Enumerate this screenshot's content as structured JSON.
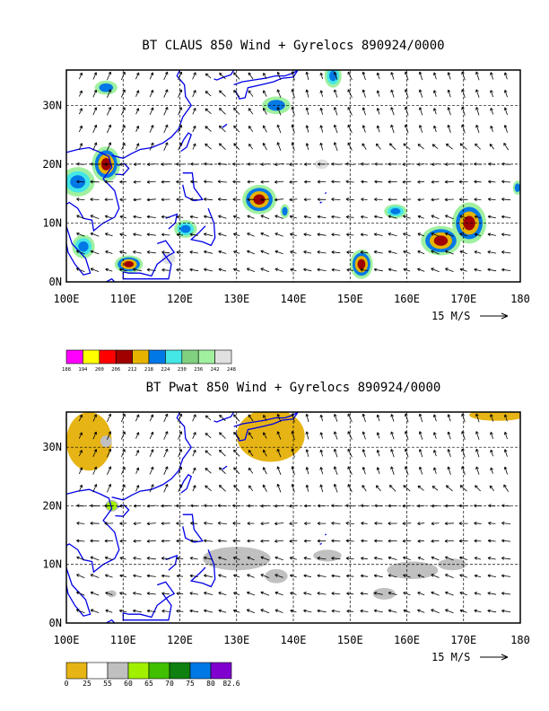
{
  "chart_data": [
    {
      "type": "heatmap",
      "title": "BT CLAUS 850 Wind + Gyrelocs 890924/0000",
      "xlabel": "",
      "ylabel": "",
      "xlim": [
        100,
        180
      ],
      "ylim": [
        0,
        36
      ],
      "x_ticks": [
        100,
        110,
        120,
        130,
        140,
        150,
        160,
        170,
        180
      ],
      "x_tick_labels": [
        "100E",
        "110E",
        "120E",
        "130E",
        "140E",
        "150E",
        "160E",
        "170E",
        "180"
      ],
      "y_ticks": [
        0,
        10,
        20,
        30
      ],
      "y_tick_labels": [
        "0N",
        "10N",
        "20N",
        "30N"
      ],
      "grid": true,
      "vector_scale_label": "15 M/S",
      "colorbar": {
        "labels": [
          "188",
          "194",
          "200",
          "206",
          "212",
          "218",
          "224",
          "230",
          "236",
          "242",
          "248"
        ],
        "colors": [
          "#ff00ff",
          "#ffff00",
          "#ff0000",
          "#a00000",
          "#e6b400",
          "#0078e6",
          "#44e6e6",
          "#80d080",
          "#a0f0a0",
          "#e0e0e0"
        ]
      },
      "cloud_features": [
        {
          "lon": 107,
          "lat": 20,
          "level": 3,
          "rx": 2.5,
          "ry": 3
        },
        {
          "lon": 102,
          "lat": 17,
          "level": 2,
          "rx": 3,
          "ry": 2.5
        },
        {
          "lon": 103,
          "lat": 6,
          "level": 2,
          "rx": 2,
          "ry": 2
        },
        {
          "lon": 111,
          "lat": 3,
          "level": 3,
          "rx": 2.5,
          "ry": 1.5
        },
        {
          "lon": 121,
          "lat": 9,
          "level": 2,
          "rx": 2,
          "ry": 1.5
        },
        {
          "lon": 134,
          "lat": 14,
          "level": 3,
          "rx": 3,
          "ry": 2.5
        },
        {
          "lon": 138.5,
          "lat": 12,
          "level": 1,
          "rx": 0.8,
          "ry": 1.2
        },
        {
          "lon": 137,
          "lat": 30,
          "level": 1,
          "rx": 2.5,
          "ry": 1.5
        },
        {
          "lon": 147,
          "lat": 35,
          "level": 2,
          "rx": 1.5,
          "ry": 2
        },
        {
          "lon": 158,
          "lat": 12,
          "level": 2,
          "rx": 2,
          "ry": 1.2
        },
        {
          "lon": 152,
          "lat": 3,
          "level": 3,
          "rx": 2,
          "ry": 2.5
        },
        {
          "lon": 166,
          "lat": 7,
          "level": 3,
          "rx": 3.5,
          "ry": 2.5
        },
        {
          "lon": 171,
          "lat": 10,
          "level": 3,
          "rx": 3,
          "ry": 3.5
        },
        {
          "lon": 118,
          "lat": 4,
          "level": 0,
          "rx": 1.2,
          "ry": 1
        },
        {
          "lon": 107,
          "lat": 33,
          "level": 1,
          "rx": 2,
          "ry": 1.2
        },
        {
          "lon": 179.5,
          "lat": 16,
          "level": 1,
          "rx": 0.8,
          "ry": 1.2
        },
        {
          "lon": 145,
          "lat": 20,
          "level": 0,
          "rx": 1.2,
          "ry": 0.8
        }
      ]
    },
    {
      "type": "heatmap",
      "title": "BT Pwat 850 Wind + Gyrelocs 890924/0000",
      "xlabel": "",
      "ylabel": "",
      "xlim": [
        100,
        180
      ],
      "ylim": [
        0,
        36
      ],
      "x_ticks": [
        100,
        110,
        120,
        130,
        140,
        150,
        160,
        170,
        180
      ],
      "x_tick_labels": [
        "100E",
        "110E",
        "120E",
        "130E",
        "140E",
        "150E",
        "160E",
        "170E",
        "180"
      ],
      "y_ticks": [
        0,
        10,
        20,
        30
      ],
      "y_tick_labels": [
        "0N",
        "10N",
        "20N",
        "30N"
      ],
      "grid": true,
      "vector_scale_label": "15 M/S",
      "colorbar": {
        "labels": [
          "0",
          "25",
          "55",
          "60",
          "65",
          "70",
          "75",
          "80",
          "82.6"
        ],
        "colors": [
          "#e6b414",
          "#ffffff",
          "#c0c0c0",
          "#a0f000",
          "#40c000",
          "#108010",
          "#0078e6",
          "#8000d0"
        ]
      },
      "pwat_features": [
        {
          "lon": 104,
          "lat": 31,
          "level": 0,
          "rx": 4,
          "ry": 5
        },
        {
          "lon": 108,
          "lat": 20,
          "level": 3,
          "rx": 1.2,
          "ry": 1
        },
        {
          "lon": 136,
          "lat": 32,
          "level": 0,
          "rx": 6,
          "ry": 4.5
        },
        {
          "lon": 176,
          "lat": 35.5,
          "level": 0,
          "rx": 5,
          "ry": 1
        },
        {
          "lon": 130,
          "lat": 11,
          "level": 2,
          "rx": 6,
          "ry": 2
        },
        {
          "lon": 137,
          "lat": 8,
          "level": 2,
          "rx": 2,
          "ry": 1.2
        },
        {
          "lon": 146,
          "lat": 11.5,
          "level": 2,
          "rx": 2.5,
          "ry": 1
        },
        {
          "lon": 161,
          "lat": 9,
          "level": 2,
          "rx": 4.5,
          "ry": 1.5
        },
        {
          "lon": 156,
          "lat": 5,
          "level": 2,
          "rx": 2,
          "ry": 1
        },
        {
          "lon": 168,
          "lat": 10,
          "level": 2,
          "rx": 2.5,
          "ry": 1
        },
        {
          "lon": 107,
          "lat": 31,
          "level": 2,
          "rx": 1,
          "ry": 1
        },
        {
          "lon": 108,
          "lat": 5,
          "level": 2,
          "rx": 0.8,
          "ry": 0.6
        }
      ]
    }
  ]
}
